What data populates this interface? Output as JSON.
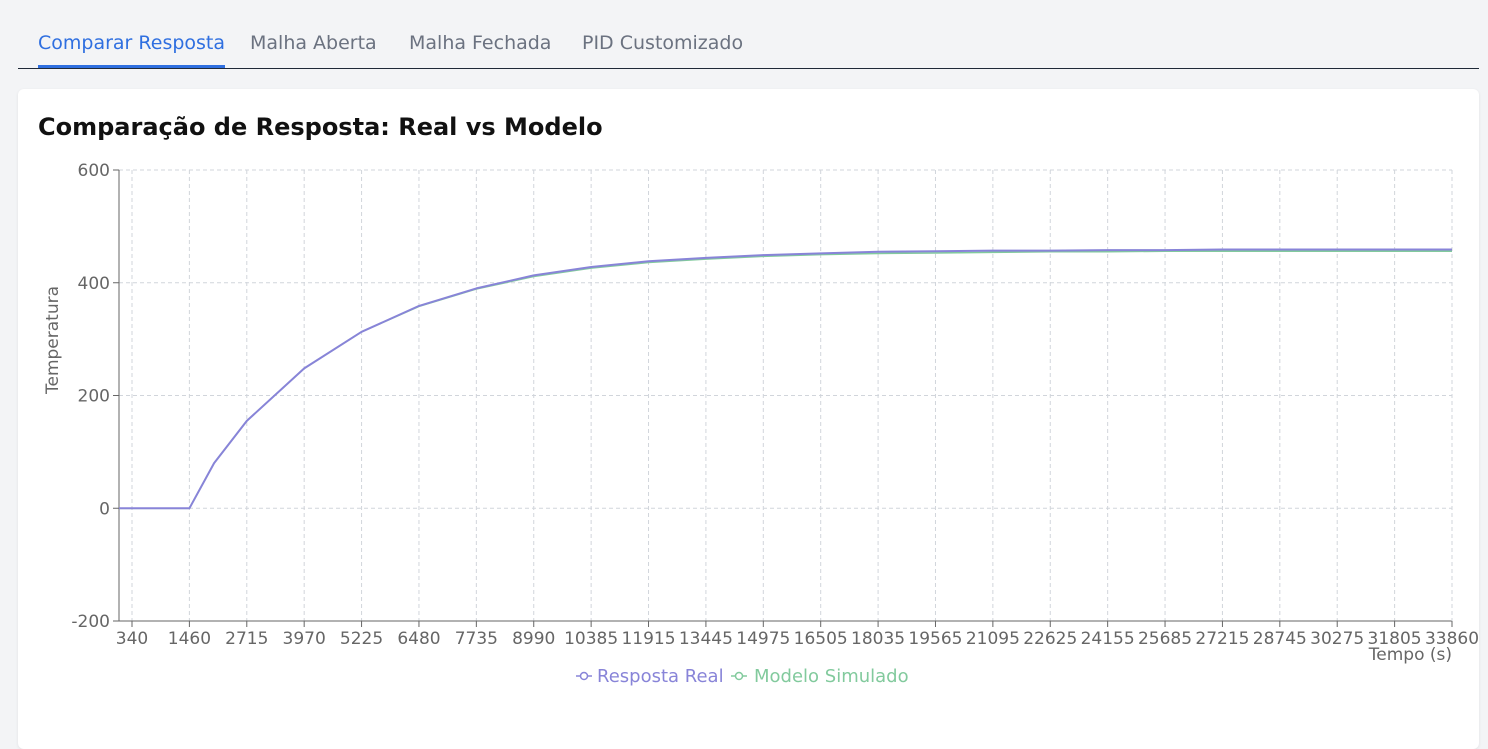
{
  "tabs": [
    {
      "label": "Comparar Resposta",
      "active": true
    },
    {
      "label": "Malha Aberta",
      "active": false
    },
    {
      "label": "Malha Fechada",
      "active": false
    },
    {
      "label": "PID Customizado",
      "active": false
    }
  ],
  "card": {
    "title": "Comparação de Resposta: Real vs Modelo"
  },
  "colors": {
    "accent": "#2f6fe0",
    "real": "#8884d8",
    "modelo": "#82ca9d"
  },
  "chart_data": {
    "type": "line",
    "title": "Comparação de Resposta: Real vs Modelo",
    "xlabel": "Tempo (s)",
    "ylabel": "Temperatura",
    "xlim": [
      0,
      33860
    ],
    "ylim": [
      -200,
      600
    ],
    "y_ticks": [
      600,
      400,
      200,
      0,
      -200
    ],
    "x_tick_labels": [
      "340",
      "1460",
      "2715",
      "3970",
      "5225",
      "6480",
      "7735",
      "8990",
      "10385",
      "11915",
      "13445",
      "14975",
      "16505",
      "18035",
      "19565",
      "21095",
      "22625",
      "24155",
      "25685",
      "27215",
      "28745",
      "30275",
      "31805",
      "33860"
    ],
    "grid": true,
    "legend_position": "bottom",
    "series": [
      {
        "name": "Resposta Real",
        "color": "#8884d8",
        "x": [
          0,
          340,
          1460,
          2000,
          2715,
          3970,
          5225,
          6480,
          7735,
          8990,
          10385,
          11915,
          13445,
          14975,
          16505,
          18035,
          19565,
          21095,
          22625,
          24155,
          25685,
          27215,
          28745,
          30275,
          31805,
          33860
        ],
        "y": [
          0,
          0,
          0,
          80,
          155,
          248,
          313,
          359,
          390,
          413,
          428,
          438,
          444,
          449,
          452,
          455,
          456,
          457,
          457,
          458,
          458,
          459,
          459,
          459,
          459,
          459
        ]
      },
      {
        "name": "Modelo Simulado",
        "color": "#82ca9d",
        "x": [
          0,
          340,
          1460,
          2000,
          2715,
          3970,
          5225,
          6480,
          7735,
          8990,
          10385,
          11915,
          13445,
          14975,
          16505,
          18035,
          19565,
          21095,
          22625,
          24155,
          25685,
          27215,
          28745,
          30275,
          31805,
          33860
        ],
        "y": [
          0,
          0,
          0,
          80,
          155,
          248,
          313,
          358,
          389,
          411,
          426,
          436,
          442,
          447,
          450,
          452,
          453,
          454,
          455,
          455,
          456,
          456,
          456,
          456,
          456,
          456
        ]
      }
    ]
  }
}
